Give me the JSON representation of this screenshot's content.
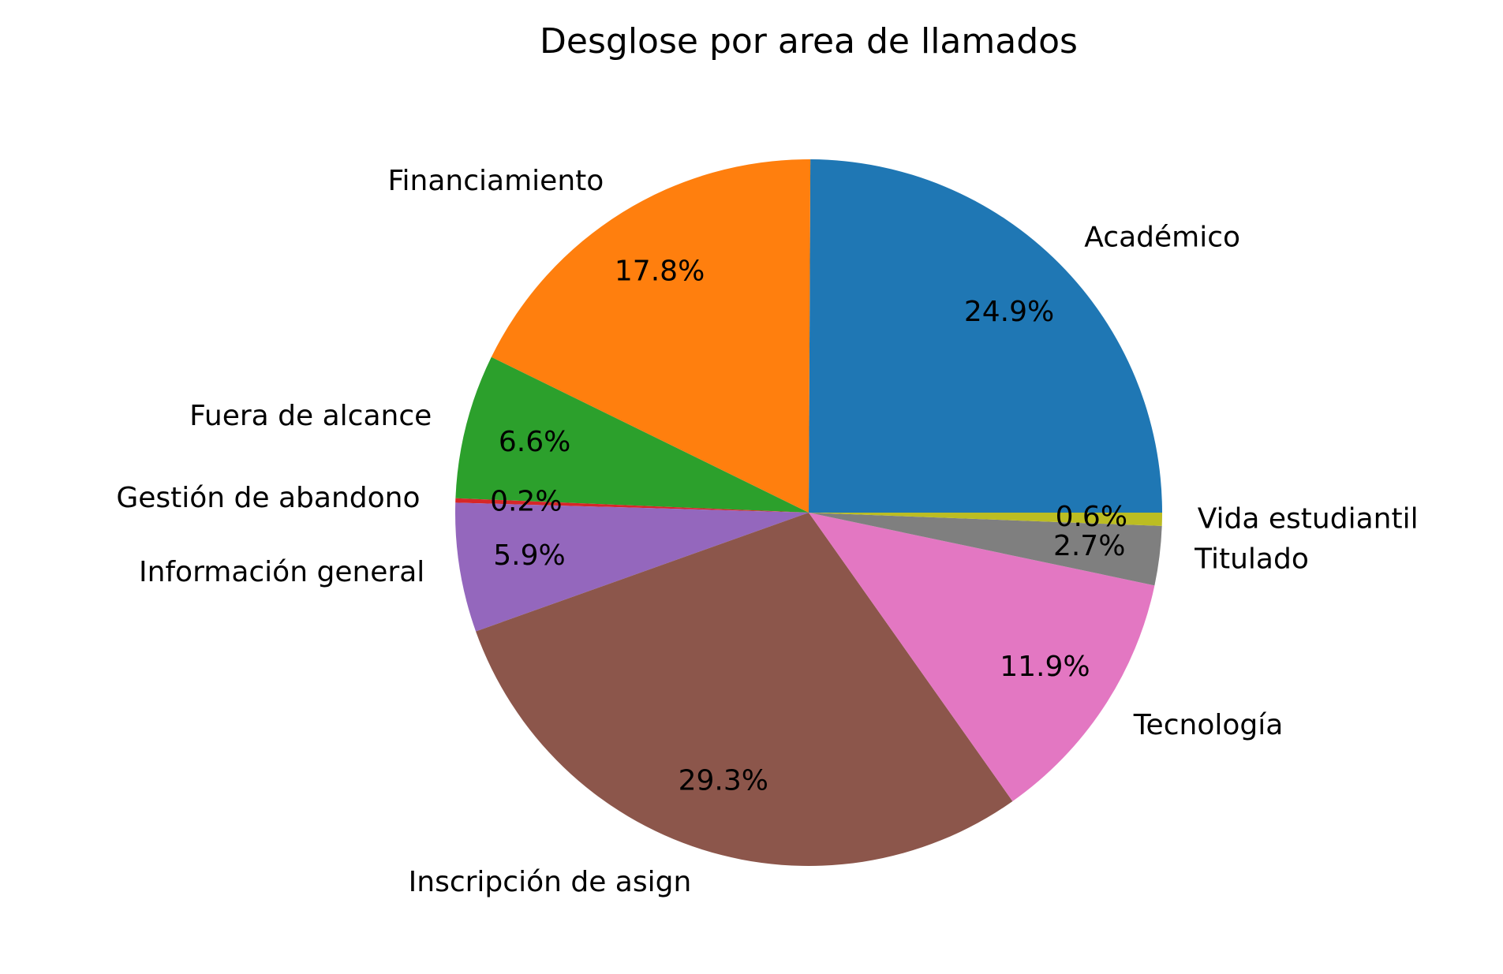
{
  "chart_data": {
    "type": "pie",
    "title": "Desglose por area de llamados",
    "slices": [
      {
        "label": "Académico",
        "value": 24.9,
        "pct_label": "24.9%",
        "color": "#1f77b4"
      },
      {
        "label": "Financiamiento",
        "value": 17.8,
        "pct_label": "17.8%",
        "color": "#ff7f0e"
      },
      {
        "label": "Fuera de alcance",
        "value": 6.6,
        "pct_label": "6.6%",
        "color": "#2ca02c"
      },
      {
        "label": "Gestión de abandono",
        "value": 0.2,
        "pct_label": "0.2%",
        "color": "#d62728"
      },
      {
        "label": "Información general",
        "value": 5.9,
        "pct_label": "5.9%",
        "color": "#9467bd"
      },
      {
        "label": "Inscripción de asign",
        "value": 29.3,
        "pct_label": "29.3%",
        "color": "#8c564b"
      },
      {
        "label": "Tecnología",
        "value": 11.9,
        "pct_label": "11.9%",
        "color": "#e377c2"
      },
      {
        "label": "Titulado",
        "value": 2.7,
        "pct_label": "2.7%",
        "color": "#7f7f7f"
      },
      {
        "label": "Vida estudiantil",
        "value": 0.6,
        "pct_label": "0.6%",
        "color": "#bcbd22"
      }
    ],
    "start_angle_deg": 0,
    "direction": "counterclockwise",
    "legend": "none"
  }
}
